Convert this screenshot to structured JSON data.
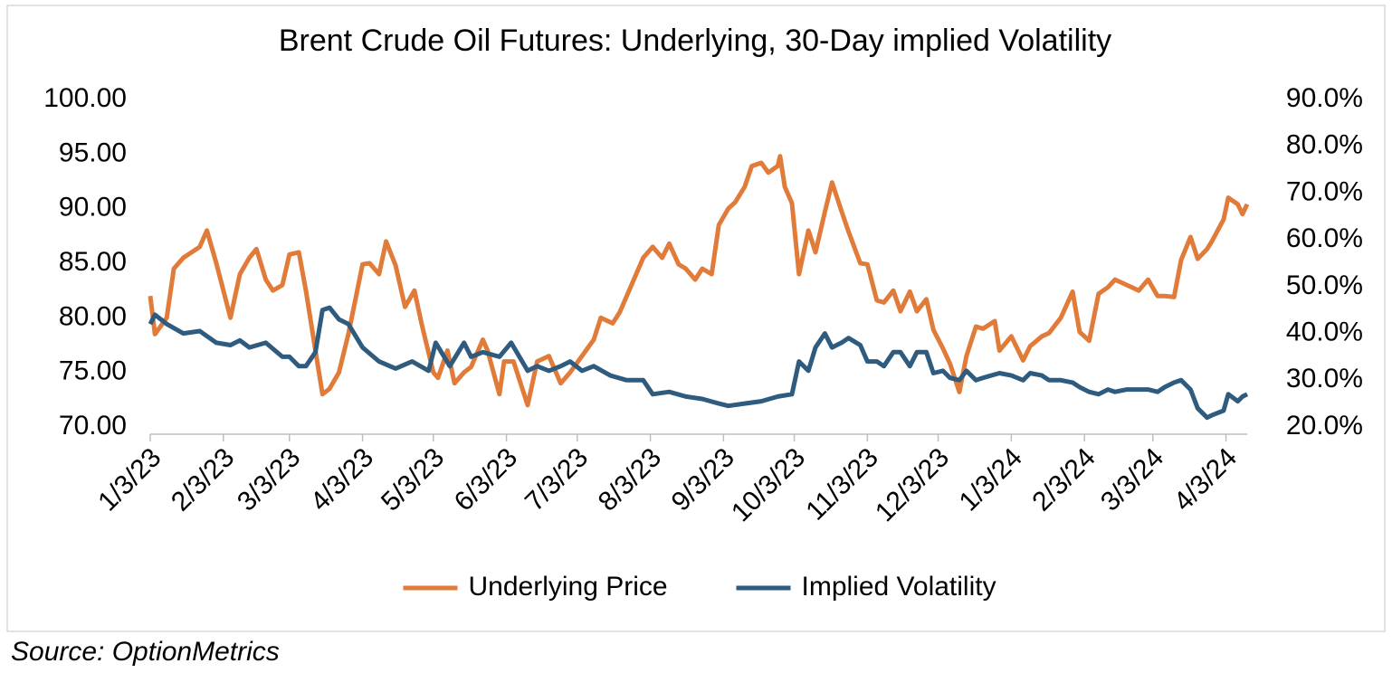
{
  "chart_data": {
    "type": "line",
    "title": "Brent Crude Oil Futures: Underlying, 30-Day implied Volatility",
    "xlim": [
      "1/3/23",
      "4/12/24"
    ],
    "xticks": [
      "1/3/23",
      "2/3/23",
      "3/3/23",
      "4/3/23",
      "5/3/23",
      "6/3/23",
      "7/3/23",
      "8/3/23",
      "9/3/23",
      "10/3/23",
      "11/3/23",
      "12/3/23",
      "1/3/24",
      "2/3/24",
      "3/3/24",
      "4/3/24"
    ],
    "ylim": [
      70,
      100
    ],
    "yticks": [
      {
        "value": 70,
        "label": "70.00"
      },
      {
        "value": 75,
        "label": "75.00"
      },
      {
        "value": 80,
        "label": "80.00"
      },
      {
        "value": 85,
        "label": "85.00"
      },
      {
        "value": 90,
        "label": "90.00"
      },
      {
        "value": 95,
        "label": "95.00"
      },
      {
        "value": 100,
        "label": "100.00"
      }
    ],
    "y2lim": [
      20,
      90
    ],
    "y2ticks": [
      {
        "value": 20,
        "label": "20.0%"
      },
      {
        "value": 30,
        "label": "30.0%"
      },
      {
        "value": 40,
        "label": "40.0%"
      },
      {
        "value": 50,
        "label": "50.0%"
      },
      {
        "value": 60,
        "label": "60.0%"
      },
      {
        "value": 70,
        "label": "70.0%"
      },
      {
        "value": 80,
        "label": "80.0%"
      },
      {
        "value": 90,
        "label": "90.0%"
      }
    ],
    "legend": "bottom",
    "series": [
      {
        "name": "Underlying Price",
        "color": "#e07b39",
        "x": [
          "1/3/23",
          "1/5/23",
          "1/10/23",
          "1/13/23",
          "1/17/23",
          "1/24/23",
          "1/27/23",
          "1/31/23",
          "2/6/23",
          "2/10/23",
          "2/14/23",
          "2/17/23",
          "2/21/23",
          "2/24/23",
          "2/28/23",
          "3/3/23",
          "3/7/23",
          "3/10/23",
          "3/14/23",
          "3/17/23",
          "3/20/23",
          "3/24/23",
          "3/28/23",
          "4/3/23",
          "4/6/23",
          "4/10/23",
          "4/13/23",
          "4/17/23",
          "4/21/23",
          "4/25/23",
          "4/28/23",
          "5/3/23",
          "5/5/23",
          "5/9/23",
          "5/12/23",
          "5/16/23",
          "5/19/23",
          "5/24/23",
          "5/26/23",
          "5/31/23",
          "6/2/23",
          "6/6/23",
          "6/12/23",
          "6/16/23",
          "6/21/23",
          "6/26/23",
          "6/30/23",
          "7/5/23",
          "7/10/23",
          "7/13/23",
          "7/18/23",
          "7/21/23",
          "7/26/23",
          "7/31/23",
          "8/4/23",
          "8/8/23",
          "8/11/23",
          "8/15/23",
          "8/18/23",
          "8/22/23",
          "8/25/23",
          "8/29/23",
          "9/1/23",
          "9/5/23",
          "9/8/23",
          "9/12/23",
          "9/15/23",
          "9/19/23",
          "9/22/23",
          "9/26/23",
          "9/27/23",
          "9/29/23",
          "10/2/23",
          "10/5/23",
          "10/9/23",
          "10/12/23",
          "10/16/23",
          "10/19/23",
          "10/23/23",
          "10/26/23",
          "10/31/23",
          "11/3/23",
          "11/7/23",
          "11/10/23",
          "11/14/23",
          "11/17/23",
          "11/21/23",
          "11/24/23",
          "11/28/23",
          "12/1/23",
          "12/5/23",
          "12/8/23",
          "12/12/23",
          "12/15/23",
          "12/19/23",
          "12/22/23",
          "12/27/23",
          "12/29/23",
          "1/3/24",
          "1/8/24",
          "1/11/24",
          "1/16/24",
          "1/19/24",
          "1/24/24",
          "1/29/24",
          "2/1/24",
          "2/5/24",
          "2/9/24",
          "2/13/24",
          "2/16/24",
          "2/21/24",
          "2/26/24",
          "3/1/24",
          "3/5/24",
          "3/8/24",
          "3/12/24",
          "3/15/24",
          "3/19/24",
          "3/22/24",
          "3/26/24",
          "3/28/24",
          "4/2/24",
          "4/4/24",
          "4/8/24",
          "4/10/24",
          "4/12/24"
        ],
        "values": [
          82,
          78.5,
          80,
          84.5,
          85.5,
          86.5,
          88,
          85,
          80,
          84,
          85.5,
          86.3,
          83.5,
          82.5,
          83,
          85.8,
          86,
          82.5,
          77,
          73,
          73.5,
          75,
          78.5,
          84.9,
          85,
          84,
          87,
          84.8,
          81,
          82.5,
          79.5,
          75,
          74.5,
          77,
          74,
          75,
          75.5,
          78,
          77,
          73,
          76,
          76,
          72,
          76,
          76.5,
          74,
          75,
          76.5,
          78,
          80,
          79.5,
          80.5,
          83,
          85.5,
          86.5,
          85.5,
          86.8,
          84.9,
          84.5,
          83.5,
          84.5,
          84,
          88.5,
          90,
          90.6,
          92,
          93.9,
          94.2,
          93.3,
          93.9,
          94.8,
          92,
          90.5,
          84,
          88,
          86,
          89.7,
          92.4,
          89.8,
          87.9,
          85,
          84.9,
          81.6,
          81.4,
          82.5,
          80.6,
          82.4,
          80.6,
          81.7,
          78.9,
          77.2,
          75.8,
          73.2,
          76.5,
          79.2,
          79,
          79.7,
          77,
          78.3,
          76.1,
          77.4,
          78.3,
          78.6,
          80,
          82.4,
          78.7,
          77.9,
          82.2,
          82.8,
          83.5,
          83,
          82.5,
          83.5,
          82,
          82,
          81.9,
          85.3,
          87.4,
          85.4,
          86.3,
          87,
          89,
          91,
          90.4,
          89.5,
          90.4
        ]
      },
      {
        "name": "Implied Volatility",
        "color": "#2e5b7e",
        "axis": "y2",
        "x": [
          "1/3/23",
          "1/5/23",
          "1/10/23",
          "1/17/23",
          "1/24/23",
          "1/31/23",
          "2/6/23",
          "2/10/23",
          "2/14/23",
          "2/21/23",
          "2/28/23",
          "3/3/23",
          "3/7/23",
          "3/10/23",
          "3/14/23",
          "3/17/23",
          "3/20/23",
          "3/24/23",
          "3/28/23",
          "4/3/23",
          "4/10/23",
          "4/17/23",
          "4/24/23",
          "5/1/23",
          "5/4/23",
          "5/10/23",
          "5/16/23",
          "5/19/23",
          "5/24/23",
          "5/31/23",
          "6/5/23",
          "6/12/23",
          "6/16/23",
          "6/21/23",
          "6/26/23",
          "6/30/23",
          "7/5/23",
          "7/10/23",
          "7/17/23",
          "7/24/23",
          "7/31/23",
          "8/4/23",
          "8/11/23",
          "8/18/23",
          "8/25/23",
          "9/1/23",
          "9/5/23",
          "9/12/23",
          "9/19/23",
          "9/26/23",
          "10/2/23",
          "10/5/23",
          "10/9/23",
          "10/12/23",
          "10/16/23",
          "10/19/23",
          "10/23/23",
          "10/26/23",
          "10/31/23",
          "11/3/23",
          "11/7/23",
          "11/10/23",
          "11/14/23",
          "11/17/23",
          "11/21/23",
          "11/24/23",
          "11/28/23",
          "12/1/23",
          "12/5/23",
          "12/8/23",
          "12/12/23",
          "12/15/23",
          "12/19/23",
          "12/22/23",
          "12/29/23",
          "1/3/24",
          "1/8/24",
          "1/11/24",
          "1/16/24",
          "1/19/24",
          "1/24/24",
          "1/29/24",
          "2/1/24",
          "2/5/24",
          "2/9/24",
          "2/13/24",
          "2/16/24",
          "2/21/24",
          "2/26/24",
          "3/1/24",
          "3/5/24",
          "3/8/24",
          "3/12/24",
          "3/15/24",
          "3/19/24",
          "3/22/24",
          "3/26/24",
          "3/28/24",
          "4/2/24",
          "4/4/24",
          "4/8/24",
          "4/10/24",
          "4/12/24"
        ],
        "values": [
          42,
          44,
          42,
          40,
          40.5,
          38,
          37.5,
          38.5,
          37,
          38,
          35,
          35,
          33,
          33,
          36,
          45,
          45.5,
          43,
          42,
          37,
          34,
          32.5,
          34,
          32,
          38,
          33,
          38,
          35,
          36,
          35,
          38,
          32,
          33,
          32,
          33,
          34,
          32,
          33,
          31,
          30,
          30,
          27,
          27.5,
          26.5,
          26,
          25,
          24.5,
          25,
          25.5,
          26.5,
          27,
          34,
          32,
          37,
          40,
          37,
          38,
          39,
          37.5,
          34,
          34,
          33,
          36,
          36,
          33,
          36,
          36,
          31.5,
          32,
          30.5,
          30,
          32,
          30,
          30.5,
          31.5,
          31,
          30,
          31.5,
          31,
          30,
          30,
          29.5,
          28.5,
          27.5,
          27,
          28,
          27.5,
          28,
          28,
          28,
          27.5,
          28.5,
          29.5,
          30,
          28,
          24,
          22,
          22.5,
          23.5,
          27,
          25.5,
          26.5,
          27
        ]
      }
    ]
  },
  "source": "Source: OptionMetrics"
}
